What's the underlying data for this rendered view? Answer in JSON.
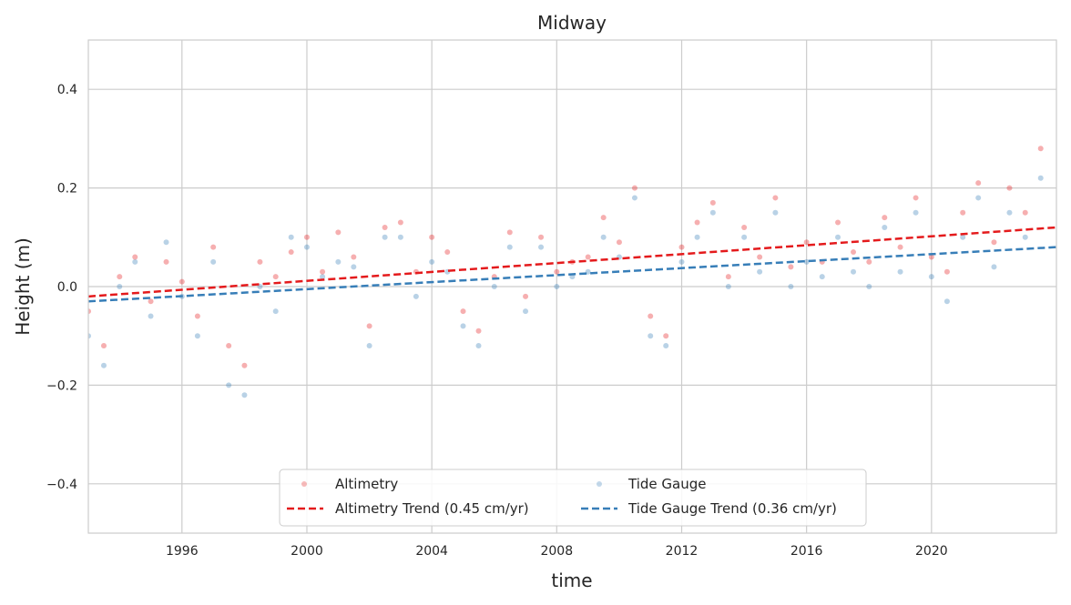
{
  "chart_data": {
    "type": "scatter",
    "title": "Midway",
    "xlabel": "time",
    "ylabel": "Height (m)",
    "xlim": [
      "1993-01-01",
      "2024-01-01"
    ],
    "ylim": [
      -0.5,
      0.5
    ],
    "x_ticks": [
      "1996",
      "2000",
      "2004",
      "2008",
      "2012",
      "2016",
      "2020"
    ],
    "y_ticks": [
      "−0.4",
      "−0.2",
      "0.0",
      "0.2",
      "0.4"
    ],
    "y_tick_values": [
      -0.4,
      -0.2,
      0.0,
      0.2,
      0.4
    ],
    "grid": true,
    "legend_position": "bottom-center",
    "series": [
      {
        "name": "Altimetry",
        "kind": "scatter",
        "color": "#e41a1c",
        "x": [
          "1993-01",
          "1993-07",
          "1994-01",
          "1994-07",
          "1995-01",
          "1995-07",
          "1996-01",
          "1996-07",
          "1997-01",
          "1997-07",
          "1998-01",
          "1998-07",
          "1999-01",
          "1999-07",
          "2000-01",
          "2000-07",
          "2001-01",
          "2001-07",
          "2002-01",
          "2002-07",
          "2003-01",
          "2003-07",
          "2004-01",
          "2004-07",
          "2005-01",
          "2005-07",
          "2006-01",
          "2006-07",
          "2007-01",
          "2007-07",
          "2008-01",
          "2008-07",
          "2009-01",
          "2009-07",
          "2010-01",
          "2010-07",
          "2011-01",
          "2011-07",
          "2012-01",
          "2012-07",
          "2013-01",
          "2013-07",
          "2014-01",
          "2014-07",
          "2015-01",
          "2015-07",
          "2016-01",
          "2016-07",
          "2017-01",
          "2017-07",
          "2018-01",
          "2018-07",
          "2019-01",
          "2019-07",
          "2020-01",
          "2020-07",
          "2021-01",
          "2021-07",
          "2022-01",
          "2022-07",
          "2023-01",
          "2023-07"
        ],
        "y": [
          -0.05,
          -0.12,
          0.02,
          0.06,
          -0.03,
          0.05,
          0.01,
          -0.06,
          0.08,
          -0.12,
          -0.16,
          0.05,
          0.02,
          0.07,
          0.1,
          0.03,
          0.11,
          0.06,
          -0.08,
          0.12,
          0.13,
          0.03,
          0.1,
          0.07,
          -0.05,
          -0.09,
          0.02,
          0.11,
          -0.02,
          0.1,
          0.03,
          0.05,
          0.06,
          0.14,
          0.09,
          0.2,
          -0.06,
          -0.1,
          0.08,
          0.13,
          0.17,
          0.02,
          0.12,
          0.06,
          0.18,
          0.04,
          0.09,
          0.05,
          0.13,
          0.07,
          0.05,
          0.14,
          0.08,
          0.18,
          0.06,
          0.03,
          0.15,
          0.21,
          0.09,
          0.2,
          0.15,
          0.28
        ]
      },
      {
        "name": "Tide Gauge",
        "kind": "scatter",
        "color": "#377eb8",
        "x": [
          "1993-01",
          "1993-07",
          "1994-01",
          "1994-07",
          "1995-01",
          "1995-07",
          "1996-01",
          "1996-07",
          "1997-01",
          "1997-07",
          "1998-01",
          "1998-07",
          "1999-01",
          "1999-07",
          "2000-01",
          "2000-07",
          "2001-01",
          "2001-07",
          "2002-01",
          "2002-07",
          "2003-01",
          "2003-07",
          "2004-01",
          "2004-07",
          "2005-01",
          "2005-07",
          "2006-01",
          "2006-07",
          "2007-01",
          "2007-07",
          "2008-01",
          "2008-07",
          "2009-01",
          "2009-07",
          "2010-01",
          "2010-07",
          "2011-01",
          "2011-07",
          "2012-01",
          "2012-07",
          "2013-01",
          "2013-07",
          "2014-01",
          "2014-07",
          "2015-01",
          "2015-07",
          "2016-01",
          "2016-07",
          "2017-01",
          "2017-07",
          "2018-01",
          "2018-07",
          "2019-01",
          "2019-07",
          "2020-01",
          "2020-07",
          "2021-01",
          "2021-07",
          "2022-01",
          "2022-07",
          "2023-01",
          "2023-07"
        ],
        "y": [
          -0.1,
          -0.16,
          0.0,
          0.05,
          -0.06,
          0.09,
          -0.02,
          -0.1,
          0.05,
          -0.2,
          -0.22,
          0.0,
          -0.05,
          0.1,
          0.08,
          0.02,
          0.05,
          0.04,
          -0.12,
          0.1,
          0.1,
          -0.02,
          0.05,
          0.03,
          -0.08,
          -0.12,
          0.0,
          0.08,
          -0.05,
          0.08,
          0.0,
          0.02,
          0.03,
          0.1,
          0.06,
          0.18,
          -0.1,
          -0.12,
          0.05,
          0.1,
          0.15,
          0.0,
          0.1,
          0.03,
          0.15,
          0.0,
          0.05,
          0.02,
          0.1,
          0.03,
          0.0,
          0.12,
          0.03,
          0.15,
          0.02,
          -0.03,
          0.1,
          0.18,
          0.04,
          0.15,
          0.1,
          0.22
        ]
      },
      {
        "name": "Altimetry Trend (0.45 cm/yr)",
        "kind": "line",
        "style": "dashed",
        "color": "#e41a1c",
        "x": [
          "1993-01-01",
          "2024-01-01"
        ],
        "y": [
          -0.02,
          0.12
        ]
      },
      {
        "name": "Tide Gauge Trend (0.36 cm/yr)",
        "kind": "line",
        "style": "dashed",
        "color": "#377eb8",
        "x": [
          "1993-01-01",
          "2024-01-01"
        ],
        "y": [
          -0.03,
          0.08
        ]
      }
    ],
    "legend": [
      {
        "label": "Altimetry",
        "marker": "dot",
        "color": "#e41a1c"
      },
      {
        "label": "Tide Gauge",
        "marker": "dot",
        "color": "#377eb8"
      },
      {
        "label": "Altimetry Trend (0.45 cm/yr)",
        "marker": "dashed-line",
        "color": "#e41a1c"
      },
      {
        "label": "Tide Gauge Trend (0.36 cm/yr)",
        "marker": "dashed-line",
        "color": "#377eb8"
      }
    ]
  }
}
